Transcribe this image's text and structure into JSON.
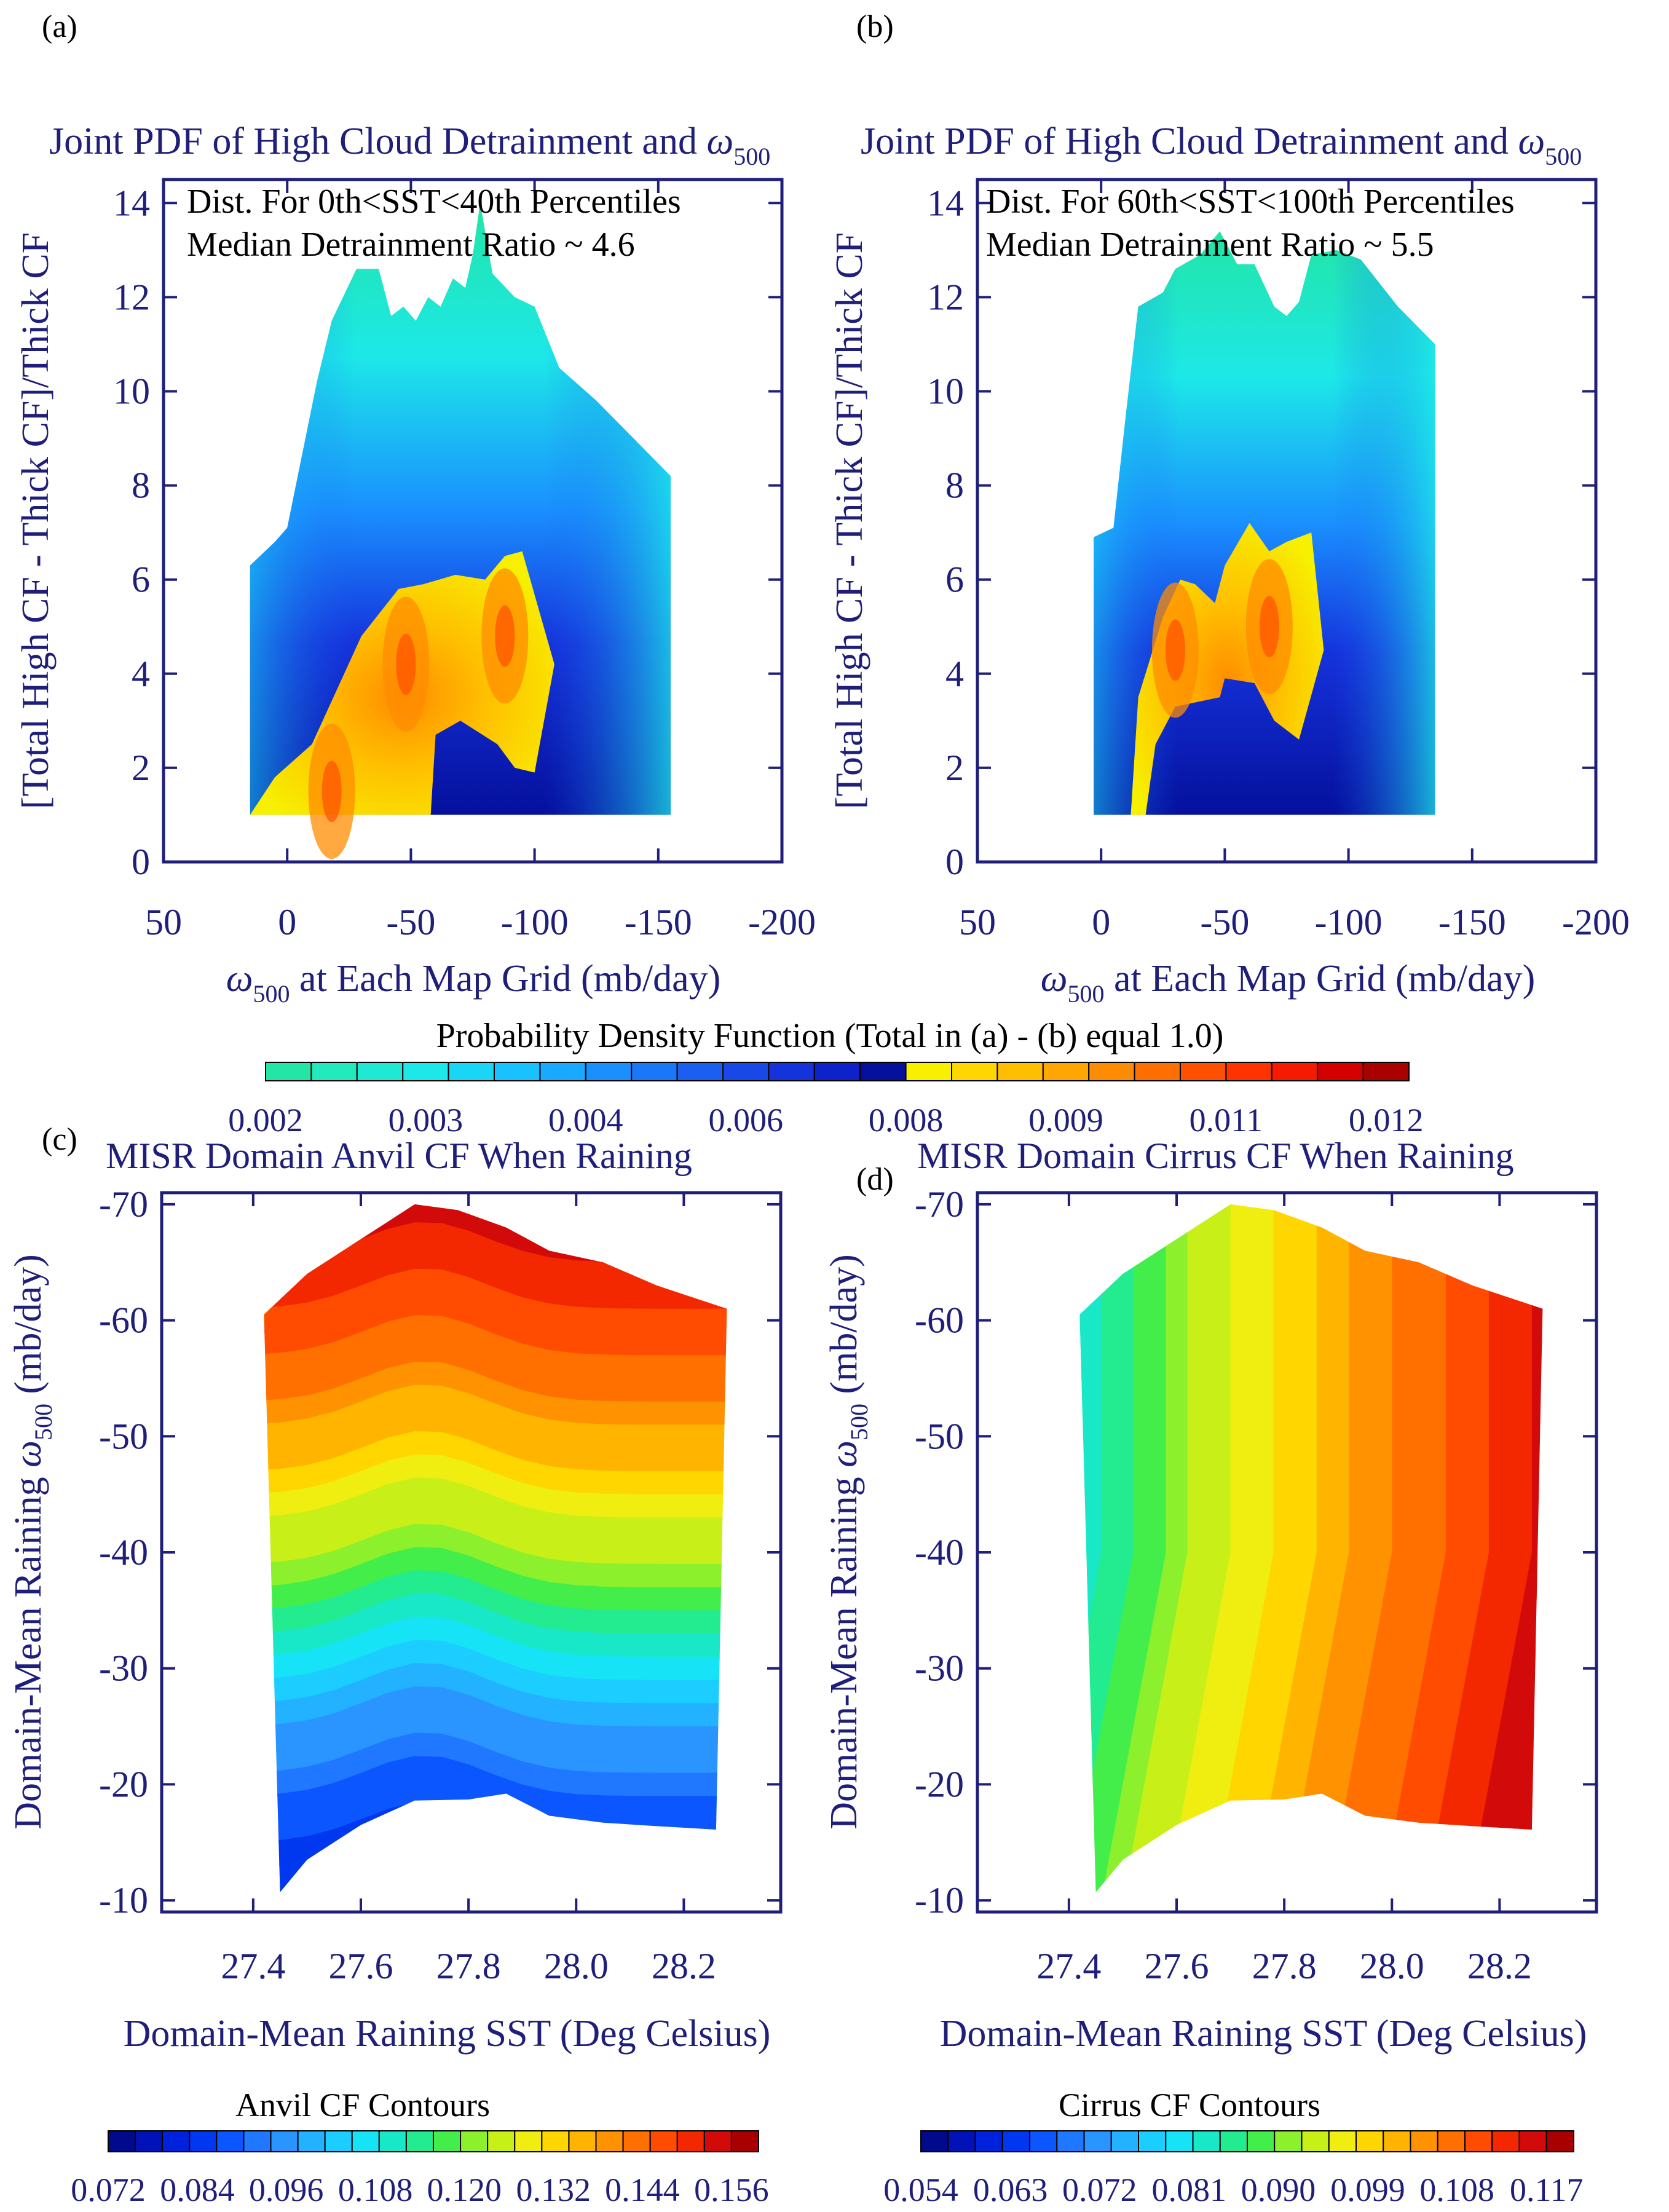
{
  "colors": {
    "axis": "#1f1f7a",
    "pdf_scale": [
      "#22e5a6",
      "#22eabd",
      "#20e9d3",
      "#1de8e8",
      "#19d6f5",
      "#17c2ff",
      "#19a9ff",
      "#1a90ff",
      "#1a78f6",
      "#1a5ff0",
      "#1848e8",
      "#1533dc",
      "#0d22c8",
      "#05109c",
      "#f7f000",
      "#ffd700",
      "#ffbf00",
      "#ffa600",
      "#ff8c00",
      "#ff6e00",
      "#ff5000",
      "#ff3300",
      "#f51a00",
      "#d40000",
      "#aa0000"
    ],
    "anvil_scale": [
      "#000a8a",
      "#0012b8",
      "#0022dc",
      "#0038f0",
      "#0b56ff",
      "#1f78ff",
      "#2a95ff",
      "#22b2ff",
      "#1ccdff",
      "#16e3f5",
      "#19e8c8",
      "#22eb90",
      "#44ee4a",
      "#8cf02c",
      "#c8f018",
      "#f0ee10",
      "#ffd600",
      "#ffb400",
      "#ff9200",
      "#ff7000",
      "#ff4c00",
      "#f32800",
      "#d30a0a",
      "#a80000"
    ],
    "cirrus_scale": [
      "#000a8a",
      "#0012b8",
      "#0022dc",
      "#0038f0",
      "#0b56ff",
      "#1f78ff",
      "#2a95ff",
      "#22b2ff",
      "#1ccdff",
      "#16e3f5",
      "#19e8c8",
      "#22eb90",
      "#44ee4a",
      "#8cf02c",
      "#c8f018",
      "#f0ee10",
      "#ffd600",
      "#ffb400",
      "#ff9200",
      "#ff7000",
      "#ff4c00",
      "#f32800",
      "#d30a0a",
      "#a80000"
    ]
  },
  "panels": {
    "a": {
      "label": "(a)",
      "title": "Joint PDF of High Cloud Detrainment and ",
      "title_sym": "ω",
      "title_sub": "500",
      "annotation_1": "Dist. For 0th<SST<40th Percentiles",
      "annotation_2": "Median Detrainment Ratio ~ 4.6",
      "ylabel": "[Total High CF - Thick CF]/Thick CF",
      "xlabel_sym": "ω",
      "xlabel_sub": "500",
      "xlabel": " at Each Map Grid (mb/day)"
    },
    "b": {
      "label": "(b)",
      "title": "Joint PDF of High Cloud Detrainment and ",
      "title_sym": "ω",
      "title_sub": "500",
      "annotation_1": "Dist. For 60th<SST<100th Percentiles",
      "annotation_2": "Median Detrainment Ratio ~ 5.5",
      "ylabel": "[Total High CF - Thick CF]/Thick CF",
      "xlabel_sym": "ω",
      "xlabel_sub": "500",
      "xlabel": " at Each Map Grid (mb/day)"
    },
    "c": {
      "label": "(c)",
      "title": "MISR Domain Anvil CF When Raining",
      "ylabel_pre": "Domain-Mean Raining ",
      "ylabel_sym": "ω",
      "ylabel_sub": "500",
      "ylabel_post": " (mb/day)",
      "xlabel": "Domain-Mean Raining SST (Deg Celsius)"
    },
    "d": {
      "label": "(d)",
      "title": "MISR Domain Cirrus CF When Raining",
      "ylabel_pre": "Domain-Mean Raining ",
      "ylabel_sym": "ω",
      "ylabel_sub": "500",
      "ylabel_post": " (mb/day)",
      "xlabel": "Domain-Mean Raining SST (Deg Celsius)"
    }
  },
  "colorbars": {
    "pdf": {
      "title": "Probability Density Function (Total in (a) - (b) equal 1.0)",
      "ticks": [
        "0.002",
        "0.003",
        "0.004",
        "0.006",
        "0.008",
        "0.009",
        "0.011",
        "0.012"
      ]
    },
    "anvil": {
      "title": "Anvil CF Contours",
      "ticks": [
        "0.072",
        "0.084",
        "0.096",
        "0.108",
        "0.120",
        "0.132",
        "0.144",
        "0.156"
      ]
    },
    "cirrus": {
      "title": "Cirrus CF Contours",
      "ticks": [
        "0.054",
        "0.063",
        "0.072",
        "0.081",
        "0.090",
        "0.099",
        "0.108",
        "0.117"
      ]
    }
  },
  "chart_data": [
    {
      "id": "a",
      "type": "heatmap",
      "title": "Joint PDF of High Cloud Detrainment and ω500",
      "xlabel": "ω500 at Each Map Grid (mb/day)",
      "ylabel": "[Total High CF - Thick CF]/Thick CF",
      "xlim": [
        50,
        -200
      ],
      "ylim": [
        0,
        14.5
      ],
      "xticks": [
        "50",
        "0",
        "-50",
        "-100",
        "-150",
        "-200"
      ],
      "yticks": [
        "0",
        "2",
        "4",
        "6",
        "8",
        "10",
        "12",
        "14"
      ],
      "y_tick_values": [
        0,
        2,
        4,
        6,
        8,
        10,
        12,
        14
      ],
      "x_tick_values": [
        50,
        0,
        -50,
        -100,
        -150,
        -200
      ],
      "outer_envelope": [
        [
          15,
          1
        ],
        [
          15,
          6.3
        ],
        [
          5,
          6.8
        ],
        [
          0,
          7.1
        ],
        [
          -12,
          10.2
        ],
        [
          -18,
          11.5
        ],
        [
          -28,
          12.6
        ],
        [
          -37,
          12.6
        ],
        [
          -42,
          11.6
        ],
        [
          -47,
          11.8
        ],
        [
          -52,
          11.5
        ],
        [
          -57,
          12.0
        ],
        [
          -62,
          11.8
        ],
        [
          -67,
          12.4
        ],
        [
          -72,
          12.2
        ],
        [
          -75,
          12.9
        ],
        [
          -78,
          14.0
        ],
        [
          -83,
          12.5
        ],
        [
          -92,
          12.0
        ],
        [
          -100,
          11.8
        ],
        [
          -110,
          10.5
        ],
        [
          -125,
          9.8
        ],
        [
          -140,
          9.0
        ],
        [
          -155,
          8.2
        ],
        [
          -155,
          1
        ]
      ],
      "core_region": [
        [
          15,
          1
        ],
        [
          5,
          1.8
        ],
        [
          -10,
          2.5
        ],
        [
          -30,
          4.8
        ],
        [
          -45,
          5.8
        ],
        [
          -55,
          5.9
        ],
        [
          -68,
          6.1
        ],
        [
          -80,
          6.0
        ],
        [
          -88,
          6.5
        ],
        [
          -95,
          6.6
        ],
        [
          -108,
          4.2
        ],
        [
          -100,
          1.9
        ],
        [
          -92,
          2.0
        ],
        [
          -85,
          2.5
        ],
        [
          -70,
          3.0
        ],
        [
          -60,
          2.7
        ],
        [
          -58,
          1.0
        ],
        [
          -50,
          1.0
        ],
        [
          -45,
          1.0
        ],
        [
          15,
          1.0
        ]
      ],
      "peak_centers": [
        [
          -48,
          4.2
        ],
        [
          -88,
          4.8
        ],
        [
          -18,
          1.5
        ]
      ],
      "annotations": [
        "Dist. For 0th<SST<40th Percentiles",
        "Median Detrainment Ratio ~ 4.6"
      ]
    },
    {
      "id": "b",
      "type": "heatmap",
      "title": "Joint PDF of High Cloud Detrainment and ω500",
      "xlabel": "ω500 at Each Map Grid (mb/day)",
      "ylabel": "[Total High CF - Thick CF]/Thick CF",
      "xlim": [
        50,
        -200
      ],
      "ylim": [
        0,
        14.5
      ],
      "xticks": [
        "50",
        "0",
        "-50",
        "-100",
        "-150",
        "-200"
      ],
      "yticks": [
        "0",
        "2",
        "4",
        "6",
        "8",
        "10",
        "12",
        "14"
      ],
      "y_tick_values": [
        0,
        2,
        4,
        6,
        8,
        10,
        12,
        14
      ],
      "x_tick_values": [
        50,
        0,
        -50,
        -100,
        -150,
        -200
      ],
      "outer_envelope": [
        [
          3,
          1
        ],
        [
          3,
          6.9
        ],
        [
          -5,
          7.1
        ],
        [
          -10,
          9.5
        ],
        [
          -15,
          11.8
        ],
        [
          -25,
          12.1
        ],
        [
          -30,
          12.6
        ],
        [
          -40,
          12.9
        ],
        [
          -48,
          13.4
        ],
        [
          -55,
          12.7
        ],
        [
          -62,
          12.7
        ],
        [
          -70,
          11.8
        ],
        [
          -75,
          11.6
        ],
        [
          -80,
          11.9
        ],
        [
          -85,
          12.9
        ],
        [
          -95,
          13.0
        ],
        [
          -105,
          12.8
        ],
        [
          -120,
          11.8
        ],
        [
          -135,
          11.0
        ],
        [
          -135,
          1
        ]
      ],
      "core_region": [
        [
          -12,
          1
        ],
        [
          -15,
          3.5
        ],
        [
          -25,
          5.2
        ],
        [
          -32,
          6.0
        ],
        [
          -38,
          5.9
        ],
        [
          -46,
          5.5
        ],
        [
          -50,
          6.3
        ],
        [
          -60,
          7.2
        ],
        [
          -68,
          6.6
        ],
        [
          -75,
          6.8
        ],
        [
          -85,
          7.0
        ],
        [
          -90,
          4.5
        ],
        [
          -80,
          2.6
        ],
        [
          -70,
          3.0
        ],
        [
          -62,
          3.8
        ],
        [
          -50,
          3.9
        ],
        [
          -48,
          3.5
        ],
        [
          -30,
          3.3
        ],
        [
          -22,
          2.5
        ],
        [
          -18,
          1.0
        ]
      ],
      "peak_centers": [
        [
          -68,
          5.0
        ],
        [
          -30,
          4.5
        ]
      ],
      "annotations": [
        "Dist. For 60th<SST<100th Percentiles",
        "Median Detrainment Ratio ~ 5.5"
      ]
    },
    {
      "id": "c",
      "type": "heatmap",
      "title": "MISR Domain Anvil CF When Raining",
      "xlabel": "Domain-Mean Raining SST (Deg Celsius)",
      "ylabel": "Domain-Mean Raining ω500 (mb/day)",
      "xlim": [
        27.23,
        28.38
      ],
      "ylim": [
        -9,
        -71
      ],
      "xticks": [
        "27.4",
        "27.6",
        "27.8",
        "28.0",
        "28.2"
      ],
      "x_tick_values": [
        27.4,
        27.6,
        27.8,
        28.0,
        28.2
      ],
      "yticks": [
        "-70",
        "-60",
        "-50",
        "-40",
        "-30",
        "-20",
        "-10"
      ],
      "y_tick_values": [
        -70,
        -60,
        -50,
        -40,
        -30,
        -20,
        -10
      ],
      "sst": [
        27.45,
        27.7,
        27.87,
        28.28
      ],
      "domain_top": [
        [
          27.42,
          -60.5
        ],
        [
          27.5,
          -64
        ],
        [
          27.6,
          -67
        ],
        [
          27.7,
          -70
        ],
        [
          27.78,
          -69.5
        ],
        [
          27.87,
          -68
        ],
        [
          27.95,
          -66
        ],
        [
          28.05,
          -65
        ],
        [
          28.15,
          -63
        ],
        [
          28.28,
          -61
        ]
      ],
      "domain_bottom": [
        [
          27.45,
          -10.7
        ],
        [
          27.5,
          -13.5
        ],
        [
          27.6,
          -16.5
        ],
        [
          27.7,
          -18.6
        ],
        [
          27.8,
          -18.7
        ],
        [
          27.87,
          -19.2
        ],
        [
          27.95,
          -17.3
        ],
        [
          28.05,
          -16.7
        ],
        [
          28.15,
          -16.4
        ],
        [
          28.26,
          -16.1
        ]
      ],
      "contour_levels": [
        0.072,
        0.156
      ],
      "trend": "Anvil CF increases with stronger ascent (more negative ω500); roughly independent of SST",
      "anvil_value_at_omega": [
        [
          -12,
          0.084
        ],
        [
          -18,
          0.088
        ],
        [
          -24,
          0.094
        ],
        [
          -30,
          0.104
        ],
        [
          -36,
          0.112
        ],
        [
          -40,
          0.12
        ],
        [
          -46,
          0.128
        ],
        [
          -52,
          0.136
        ],
        [
          -58,
          0.142
        ],
        [
          -64,
          0.148
        ],
        [
          -70,
          0.15
        ]
      ]
    },
    {
      "id": "d",
      "type": "heatmap",
      "title": "MISR Domain Cirrus CF When Raining",
      "xlabel": "Domain-Mean Raining SST (Deg Celsius)",
      "ylabel": "Domain-Mean Raining ω500 (mb/day)",
      "xlim": [
        27.23,
        28.38
      ],
      "ylim": [
        -9,
        -71
      ],
      "xticks": [
        "27.4",
        "27.6",
        "27.8",
        "28.0",
        "28.2"
      ],
      "x_tick_values": [
        27.4,
        27.6,
        27.8,
        28.0,
        28.2
      ],
      "yticks": [
        "-70",
        "-60",
        "-50",
        "-40",
        "-30",
        "-20",
        "-10"
      ],
      "y_tick_values": [
        -70,
        -60,
        -50,
        -40,
        -30,
        -20,
        -10
      ],
      "domain_top": [
        [
          27.42,
          -60.5
        ],
        [
          27.5,
          -64
        ],
        [
          27.6,
          -67
        ],
        [
          27.7,
          -70
        ],
        [
          27.78,
          -69.5
        ],
        [
          27.87,
          -68
        ],
        [
          27.95,
          -66
        ],
        [
          28.05,
          -65
        ],
        [
          28.15,
          -63
        ],
        [
          28.28,
          -61
        ]
      ],
      "domain_bottom": [
        [
          27.45,
          -10.7
        ],
        [
          27.5,
          -13.5
        ],
        [
          27.6,
          -16.5
        ],
        [
          27.7,
          -18.6
        ],
        [
          27.8,
          -18.7
        ],
        [
          27.87,
          -19.2
        ],
        [
          27.95,
          -17.3
        ],
        [
          28.05,
          -16.7
        ],
        [
          28.15,
          -16.4
        ],
        [
          28.26,
          -16.1
        ]
      ],
      "contour_levels": [
        0.054,
        0.117
      ],
      "trend": "Cirrus CF increases with SST (warmer = more cirrus)",
      "cirrus_value_at_sst": [
        [
          27.42,
          0.082
        ],
        [
          27.5,
          0.085
        ],
        [
          27.6,
          0.09
        ],
        [
          27.7,
          0.094
        ],
        [
          27.8,
          0.097
        ],
        [
          27.9,
          0.101
        ],
        [
          28.0,
          0.104
        ],
        [
          28.1,
          0.107
        ],
        [
          28.2,
          0.11
        ],
        [
          28.28,
          0.113
        ]
      ]
    }
  ]
}
